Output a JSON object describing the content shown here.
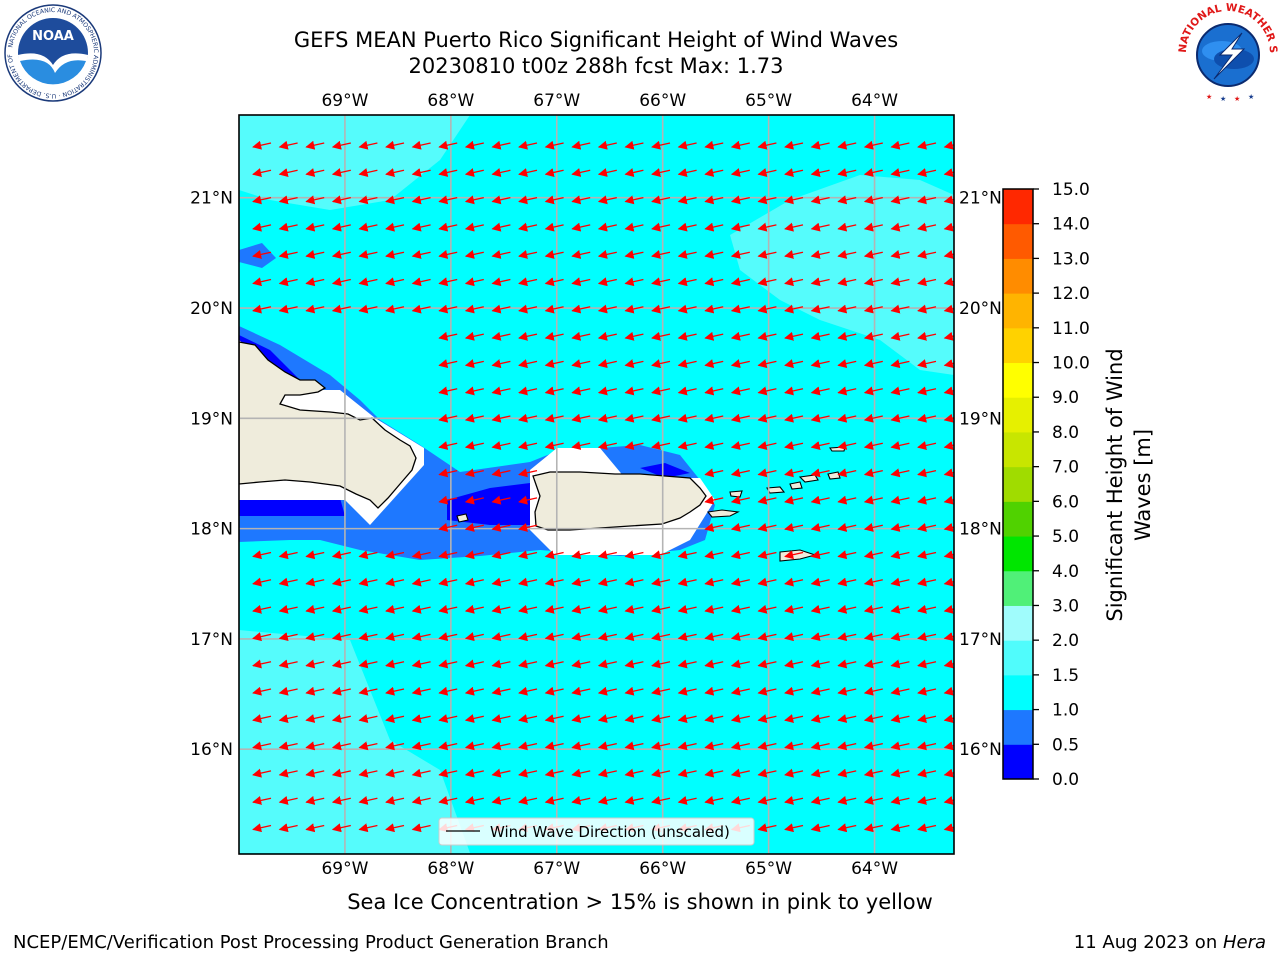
{
  "header": {
    "title_line1": "GEFS MEAN Puerto Rico Significant Height of Wind Waves",
    "title_line2": "20230810 t00z 288h fcst   Max: 1.73"
  },
  "logos": {
    "left": "noaa-logo",
    "left_text": "NOAA",
    "left_ring_text": "NATIONAL OCEANIC AND ATMOSPHERIC ADMINISTRATION · U.S. DEPARTMENT OF COMMERCE",
    "right": "nws-logo",
    "right_ring_text": "NATIONAL WEATHER SERVICE"
  },
  "map": {
    "lon_ticks": [
      "69°W",
      "68°W",
      "67°W",
      "66°W",
      "65°W",
      "64°W"
    ],
    "lat_ticks": [
      "21°N",
      "20°N",
      "19°N",
      "18°N",
      "17°N",
      "16°N"
    ],
    "lon_values": [
      -69,
      -68,
      -67,
      -66,
      -65,
      -64
    ],
    "lat_values": [
      21,
      20,
      19,
      18,
      17,
      16
    ],
    "lon_range": [
      -70.0,
      -63.25
    ],
    "lat_range": [
      15.05,
      21.75
    ],
    "legend_label": "Wind Wave Direction (unscaled)",
    "arrow_color": "#ff0000",
    "land_color": "#efecdc",
    "ocean_base_color": "#00ffff",
    "grid": true,
    "legend_position": "bottom-center"
  },
  "colorbar": {
    "label": "Significant Height of Wind Waves [m]",
    "label_line1": "Significant Height of Wind",
    "label_line2": "Waves [m]",
    "ticks": [
      "0.0",
      "0.5",
      "1.0",
      "1.5",
      "2.0",
      "3.0",
      "4.0",
      "5.0",
      "6.0",
      "7.0",
      "8.0",
      "9.0",
      "10.0",
      "11.0",
      "12.0",
      "13.0",
      "14.0",
      "15.0"
    ],
    "colors": [
      "#0000ff",
      "#1e78ff",
      "#00ffff",
      "#50fcfc",
      "#a0fcfc",
      "#50f078",
      "#00e600",
      "#50d200",
      "#a0dc00",
      "#c8e600",
      "#e6f000",
      "#ffff00",
      "#ffd200",
      "#ffb400",
      "#ff8c00",
      "#ff5a00",
      "#ff2800"
    ]
  },
  "footer": {
    "caption": "Sea Ice Concentration > 15% is shown in pink to yellow",
    "left": "NCEP/EMC/Verification Post Processing Product Generation Branch",
    "right_prefix": "11 Aug 2023 on ",
    "right_host": "Hera"
  }
}
